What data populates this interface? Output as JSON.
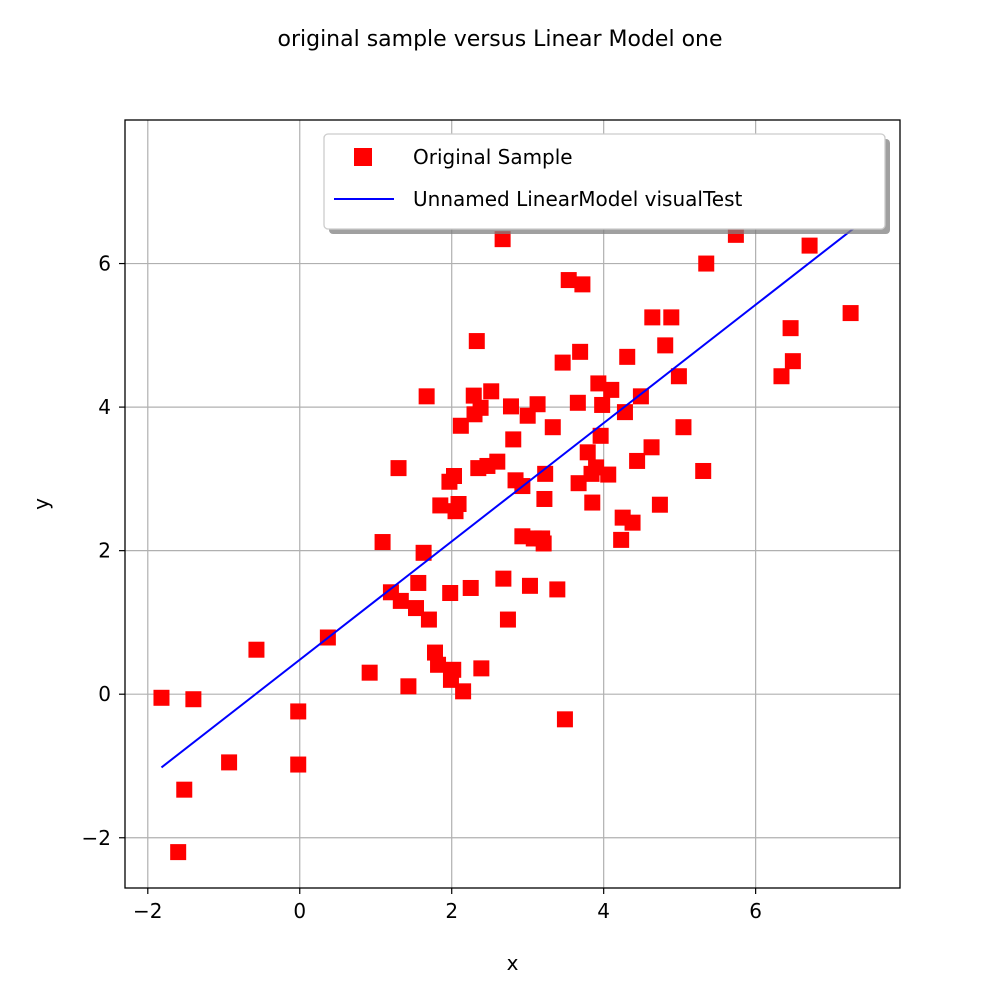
{
  "chart_data": {
    "type": "scatter",
    "title": "original sample versus Linear Model one",
    "xlabel": "x",
    "ylabel": "y",
    "xlim": [
      -2.3,
      7.9
    ],
    "ylim": [
      -2.7,
      8.0
    ],
    "xticks": [
      -2,
      0,
      2,
      4,
      6
    ],
    "yticks": [
      -2,
      0,
      2,
      4,
      6
    ],
    "grid": true,
    "legend_position": "top-right",
    "colors": {
      "sample": "#ff0000",
      "model": "#0000ff"
    },
    "series": [
      {
        "name": "Original Sample",
        "kind": "scatter",
        "marker": "square",
        "points": [
          [
            -1.82,
            -0.05
          ],
          [
            -1.4,
            -0.07
          ],
          [
            -1.52,
            -1.33
          ],
          [
            -1.6,
            -2.2
          ],
          [
            -0.93,
            -0.95
          ],
          [
            -0.57,
            0.62
          ],
          [
            -0.02,
            -0.24
          ],
          [
            -0.02,
            -0.98
          ],
          [
            0.37,
            0.79
          ],
          [
            0.92,
            0.3
          ],
          [
            1.09,
            2.12
          ],
          [
            1.2,
            1.42
          ],
          [
            1.3,
            3.15
          ],
          [
            1.33,
            1.3
          ],
          [
            1.43,
            0.11
          ],
          [
            1.53,
            1.2
          ],
          [
            1.56,
            1.55
          ],
          [
            1.63,
            1.97
          ],
          [
            1.67,
            4.15
          ],
          [
            1.7,
            1.04
          ],
          [
            1.78,
            0.58
          ],
          [
            1.82,
            0.41
          ],
          [
            1.85,
            2.63
          ],
          [
            1.97,
            2.96
          ],
          [
            1.98,
            1.41
          ],
          [
            1.99,
            0.2
          ],
          [
            2.02,
            0.34
          ],
          [
            2.03,
            3.04
          ],
          [
            2.05,
            2.55
          ],
          [
            2.09,
            2.65
          ],
          [
            2.12,
            3.74
          ],
          [
            2.15,
            0.04
          ],
          [
            2.25,
            1.48
          ],
          [
            2.29,
            4.16
          ],
          [
            2.3,
            3.9
          ],
          [
            2.33,
            4.92
          ],
          [
            2.35,
            3.15
          ],
          [
            2.38,
            3.99
          ],
          [
            2.39,
            0.36
          ],
          [
            2.47,
            3.18
          ],
          [
            2.52,
            4.22
          ],
          [
            2.6,
            3.24
          ],
          [
            2.67,
            6.34
          ],
          [
            2.68,
            1.61
          ],
          [
            2.74,
            1.04
          ],
          [
            2.78,
            4.01
          ],
          [
            2.81,
            3.55
          ],
          [
            2.84,
            2.98
          ],
          [
            2.93,
            2.9
          ],
          [
            2.93,
            2.2
          ],
          [
            3.0,
            3.88
          ],
          [
            3.03,
            1.51
          ],
          [
            3.08,
            2.17
          ],
          [
            3.13,
            4.04
          ],
          [
            3.19,
            2.17
          ],
          [
            3.21,
            2.1
          ],
          [
            3.22,
            2.72
          ],
          [
            3.23,
            3.07
          ],
          [
            3.33,
            3.72
          ],
          [
            3.39,
            1.46
          ],
          [
            3.46,
            4.62
          ],
          [
            3.49,
            -0.35
          ],
          [
            3.54,
            5.77
          ],
          [
            3.66,
            4.06
          ],
          [
            3.67,
            2.94
          ],
          [
            3.69,
            4.77
          ],
          [
            3.72,
            5.71
          ],
          [
            3.79,
            3.37
          ],
          [
            3.84,
            3.07
          ],
          [
            3.85,
            2.67
          ],
          [
            3.9,
            3.16
          ],
          [
            3.93,
            4.33
          ],
          [
            3.96,
            3.6
          ],
          [
            3.98,
            4.03
          ],
          [
            4.06,
            3.06
          ],
          [
            4.1,
            4.24
          ],
          [
            4.23,
            2.15
          ],
          [
            4.25,
            2.46
          ],
          [
            4.28,
            3.93
          ],
          [
            4.31,
            4.7
          ],
          [
            4.38,
            2.39
          ],
          [
            4.44,
            3.25
          ],
          [
            4.49,
            4.15
          ],
          [
            4.63,
            3.44
          ],
          [
            4.64,
            5.25
          ],
          [
            4.74,
            2.64
          ],
          [
            4.81,
            4.86
          ],
          [
            4.89,
            5.25
          ],
          [
            4.99,
            4.43
          ],
          [
            5.05,
            3.72
          ],
          [
            5.31,
            3.11
          ],
          [
            5.35,
            6.0
          ],
          [
            5.74,
            6.4
          ],
          [
            6.34,
            4.43
          ],
          [
            6.46,
            5.1
          ],
          [
            6.49,
            4.64
          ],
          [
            6.71,
            6.25
          ],
          [
            7.25,
            5.31
          ]
        ]
      },
      {
        "name": "Unnamed LinearModel visualTest",
        "kind": "line",
        "points": [
          [
            -1.82,
            -1.02
          ],
          [
            7.4,
            6.58
          ]
        ]
      }
    ]
  }
}
